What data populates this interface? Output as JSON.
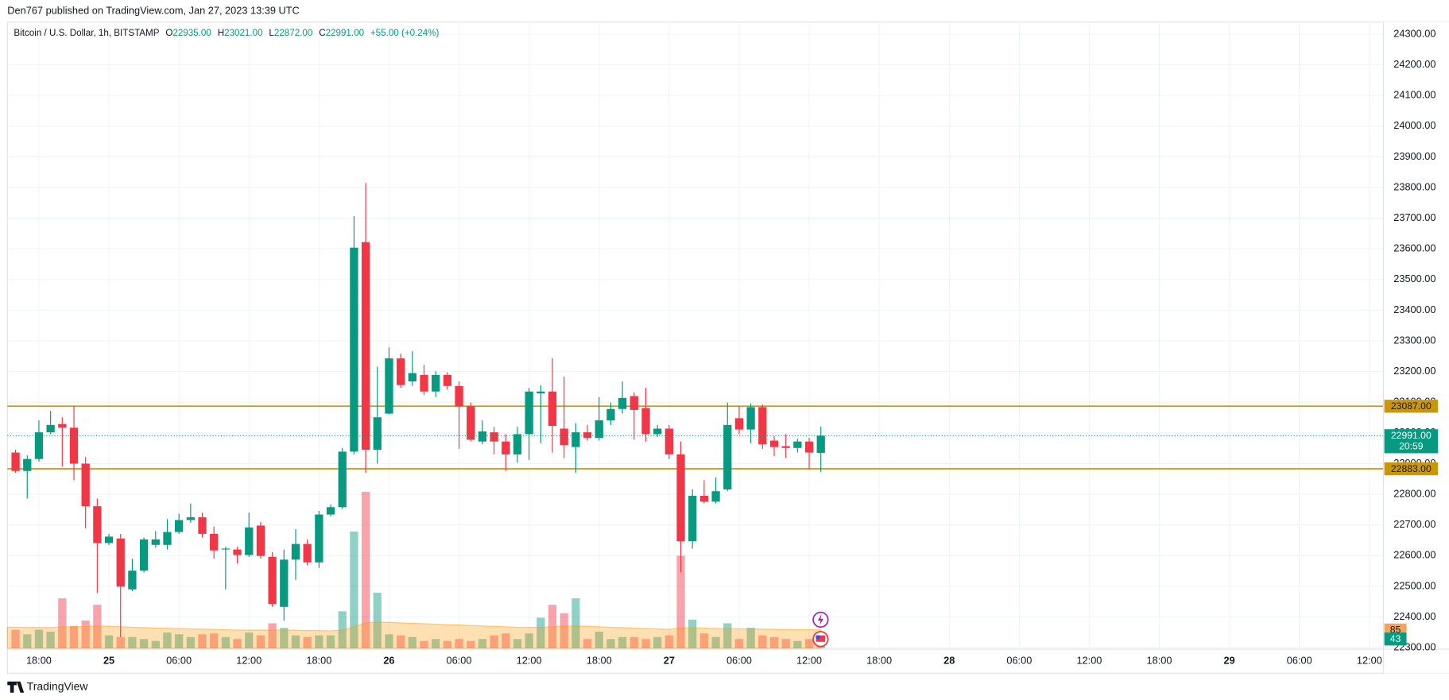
{
  "header": {
    "title": "Den767 published on TradingView.com, Jan 27, 2023 13:39 UTC",
    "footer": "TradingView"
  },
  "chart_data": {
    "type": "candlestick",
    "legend": {
      "symbol": "Bitcoin / U.S. Dollar, 1h, BITSTAMP",
      "o_key": "O",
      "o": "22935.00",
      "h_key": "H",
      "h": "23021.00",
      "l_key": "L",
      "l": "22872.00",
      "c_key": "C",
      "c": "22991.00",
      "change": "+55.00 (+0.24%)"
    },
    "x": [
      16,
      17,
      18,
      19,
      20,
      21,
      22,
      23,
      24,
      25,
      26,
      27,
      28,
      29,
      30,
      31,
      32,
      33,
      34,
      35,
      36,
      37,
      38,
      39,
      40,
      41,
      42,
      43,
      44,
      45,
      46,
      47,
      48,
      49,
      50,
      51,
      52,
      53,
      54,
      55,
      56,
      57,
      58,
      59,
      60,
      61,
      62,
      63,
      64,
      65,
      66,
      67,
      68,
      69,
      70,
      71,
      72,
      73,
      74,
      75,
      76,
      77,
      78,
      79,
      80,
      81,
      82,
      83,
      84,
      85
    ],
    "open": [
      22936,
      22876,
      22915,
      23002,
      23029,
      23017,
      22900,
      22761,
      22641,
      22656,
      22490,
      22551,
      22635,
      22635,
      22677,
      22716,
      22725,
      22671,
      22620,
      22620,
      22602,
      22698,
      22596,
      22433,
      22587,
      22638,
      22578,
      22734,
      22758,
      22939,
      23622,
      22945,
      23063,
      23243,
      23168,
      23189,
      23135,
      23189,
      23153,
      23087,
      22972,
      23002,
      22972,
      22930,
      22996,
      23129,
      23135,
      23014,
      22954,
      23002,
      22984,
      23041,
      23078,
      23120,
      23081,
      22996,
      23014,
      22930,
      22647,
      22795,
      22776,
      22816,
      23048,
      23011,
      23084,
      22975,
      22957,
      22951,
      22972,
      22935
    ],
    "high": [
      22945,
      22927,
      23041,
      23072,
      23051,
      23087,
      22921,
      22786,
      22671,
      22671,
      22590,
      22659,
      22680,
      22719,
      22737,
      22770,
      22740,
      22695,
      22629,
      22629,
      22740,
      22710,
      22611,
      22620,
      22686,
      22653,
      22746,
      22767,
      22951,
      23707,
      23815,
      23216,
      23279,
      23258,
      23267,
      23222,
      23201,
      23198,
      23168,
      23099,
      23041,
      23020,
      22996,
      23020,
      23147,
      23156,
      23243,
      23183,
      23032,
      23026,
      23117,
      23099,
      23168,
      23132,
      23147,
      23026,
      23026,
      22972,
      22816,
      22846,
      22855,
      23099,
      23087,
      23096,
      23093,
      22990,
      22996,
      22981,
      22984,
      23021
    ],
    "low": [
      22870,
      22786,
      22906,
      22996,
      22891,
      22846,
      22689,
      22478,
      22635,
      22334,
      22484,
      22545,
      22626,
      22620,
      22671,
      22707,
      22659,
      22590,
      22490,
      22575,
      22596,
      22590,
      22433,
      22388,
      22521,
      22569,
      22560,
      22728,
      22752,
      22930,
      22870,
      22900,
      23060,
      23147,
      23153,
      23123,
      23117,
      23141,
      22948,
      22972,
      22963,
      22930,
      22876,
      22903,
      22912,
      22966,
      22936,
      22918,
      22870,
      22975,
      22975,
      23026,
      23063,
      22978,
      22972,
      22987,
      22915,
      22545,
      22623,
      22770,
      22770,
      22810,
      22996,
      22966,
      22948,
      22924,
      22918,
      22936,
      22882,
      22872
    ],
    "close": [
      22876,
      22915,
      23002,
      23026,
      23017,
      22900,
      22761,
      22641,
      22662,
      22499,
      22551,
      22653,
      22653,
      22677,
      22716,
      22725,
      22671,
      22617,
      22623,
      22602,
      22692,
      22599,
      22442,
      22587,
      22638,
      22578,
      22734,
      22758,
      22939,
      23604,
      22945,
      23051,
      23243,
      23156,
      23195,
      23135,
      23189,
      23153,
      23087,
      22978,
      23005,
      22972,
      22930,
      22996,
      23135,
      23135,
      23023,
      22960,
      23002,
      22984,
      23041,
      23078,
      23114,
      23075,
      22996,
      23014,
      22930,
      22647,
      22795,
      22776,
      22810,
      23026,
      23011,
      23084,
      22963,
      22954,
      22951,
      22972,
      22936,
      22991
    ],
    "volume": [
      86,
      65,
      86,
      77,
      232,
      103,
      129,
      202,
      60,
      52,
      52,
      43,
      34,
      73,
      65,
      52,
      65,
      69,
      52,
      43,
      73,
      60,
      116,
      95,
      60,
      52,
      60,
      60,
      172,
      542,
      727,
      258,
      65,
      60,
      52,
      34,
      43,
      34,
      43,
      34,
      43,
      60,
      69,
      43,
      69,
      142,
      202,
      163,
      232,
      43,
      77,
      43,
      52,
      52,
      43,
      52,
      60,
      430,
      133,
      69,
      52,
      116,
      43,
      95,
      60,
      52,
      43,
      34,
      43,
      43
    ],
    "volume_ma": [
      98,
      97,
      97,
      96,
      100,
      100,
      101,
      104,
      102,
      100,
      98,
      96,
      94,
      93,
      92,
      90,
      89,
      88,
      86,
      85,
      84,
      84,
      85,
      85,
      84,
      82,
      82,
      81,
      84,
      100,
      118,
      122,
      120,
      118,
      116,
      114,
      112,
      110,
      108,
      106,
      104,
      102,
      100,
      98,
      97,
      98,
      100,
      102,
      104,
      102,
      100,
      98,
      96,
      94,
      92,
      90,
      88,
      95,
      95,
      94,
      92,
      92,
      90,
      90,
      89,
      88,
      87,
      86,
      86,
      85
    ],
    "volume_ma_value": 85,
    "volume_value": 43,
    "up_color": "#089981",
    "down_color": "#f23645",
    "volume_ma_color": "#ff9800",
    "levels": [
      {
        "value": 23087,
        "label": "23087.00",
        "color": "#c9960c"
      },
      {
        "value": 22883,
        "label": "22883.00",
        "color": "#c9960c"
      }
    ],
    "last_price": {
      "label": "22991.00",
      "countdown": "20:59"
    },
    "xlim": [
      15.3,
      133.2
    ],
    "xticks": [
      {
        "value": 18,
        "label": "18:00"
      },
      {
        "value": 24,
        "label": "25"
      },
      {
        "value": 30,
        "label": "06:00"
      },
      {
        "value": 36,
        "label": "12:00"
      },
      {
        "value": 42,
        "label": "18:00"
      },
      {
        "value": 48,
        "label": "26"
      },
      {
        "value": 54,
        "label": "06:00"
      },
      {
        "value": 60,
        "label": "12:00"
      },
      {
        "value": 66,
        "label": "18:00"
      },
      {
        "value": 72,
        "label": "27"
      },
      {
        "value": 78,
        "label": "06:00"
      },
      {
        "value": 84,
        "label": "12:00"
      },
      {
        "value": 90,
        "label": "18:00"
      },
      {
        "value": 96,
        "label": "28"
      },
      {
        "value": 102,
        "label": "06:00"
      },
      {
        "value": 108,
        "label": "12:00"
      },
      {
        "value": 114,
        "label": "18:00"
      },
      {
        "value": 120,
        "label": "29"
      },
      {
        "value": 126,
        "label": "06:00"
      },
      {
        "value": 132,
        "label": "12:00"
      }
    ],
    "ylim": [
      22298,
      24339
    ],
    "yticks": [
      {
        "value": 22300,
        "label": "22300.00"
      },
      {
        "value": 22400,
        "label": "22400.00"
      },
      {
        "value": 22500,
        "label": "22500.00"
      },
      {
        "value": 22600,
        "label": "22600.00"
      },
      {
        "value": 22700,
        "label": "22700.00"
      },
      {
        "value": 22800,
        "label": "22800.00"
      },
      {
        "value": 22900,
        "label": "22900.00"
      },
      {
        "value": 23000,
        "label": "23000.00"
      },
      {
        "value": 23100,
        "label": "23100.00"
      },
      {
        "value": 23200,
        "label": "23200.00"
      },
      {
        "value": 23300,
        "label": "23300.00"
      },
      {
        "value": 23400,
        "label": "23400.00"
      },
      {
        "value": 23500,
        "label": "23500.00"
      },
      {
        "value": 23600,
        "label": "23600.00"
      },
      {
        "value": 23700,
        "label": "23700.00"
      },
      {
        "value": 23800,
        "label": "23800.00"
      },
      {
        "value": 23900,
        "label": "23900.00"
      },
      {
        "value": 24000,
        "label": "24000.00"
      },
      {
        "value": 24100,
        "label": "24100.00"
      },
      {
        "value": 24200,
        "label": "24200.00"
      },
      {
        "value": 24300,
        "label": "24300.00"
      }
    ],
    "grid": true
  }
}
